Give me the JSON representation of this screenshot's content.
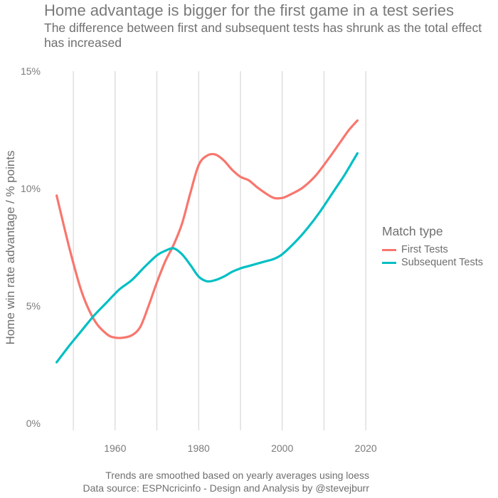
{
  "title": "Home advantage is bigger for the first game in a test series",
  "subtitle": "The difference between first and subsequent tests has shrunk as the total effect has increased",
  "caption_lines": [
    "Trends are smoothed based on yearly averages using loess",
    "Data source: ESPNcricinfo - Design and Analysis by @stevejburr"
  ],
  "chart_data": {
    "type": "line",
    "title": "Home advantage is bigger for the first game in a test series",
    "subtitle": "The difference between first and subsequent tests has shrunk as the total effect has increased",
    "xlabel": "",
    "ylabel": "Home win rate advantage / % points",
    "xlim": [
      1943,
      2021
    ],
    "ylim": [
      0,
      15
    ],
    "x_ticks": [
      1960,
      1980,
      2000,
      2020
    ],
    "x_gridlines": [
      1950,
      1960,
      1970,
      1980,
      1990,
      2000,
      2010,
      2020
    ],
    "y_ticks": [
      0,
      5,
      10,
      15
    ],
    "y_tick_labels": [
      "0%",
      "5%",
      "10%",
      "15%"
    ],
    "grid": "vertical only",
    "legend_position": "right",
    "legend_title": "Match type",
    "series": [
      {
        "name": "First Tests",
        "color": "#F8766D",
        "x": [
          1946,
          1949,
          1952,
          1955,
          1958,
          1960,
          1962,
          1964,
          1966,
          1968,
          1970,
          1972,
          1974,
          1976,
          1978,
          1980,
          1982,
          1984,
          1986,
          1988,
          1990,
          1992,
          1994,
          1996,
          1998,
          2000,
          2002,
          2005,
          2008,
          2011,
          2014,
          2016,
          2018
        ],
        "y": [
          9.7,
          7.5,
          5.6,
          4.4,
          3.8,
          3.65,
          3.65,
          3.75,
          4.1,
          5.0,
          6.0,
          6.9,
          7.6,
          8.5,
          9.8,
          11.0,
          11.4,
          11.45,
          11.2,
          10.8,
          10.5,
          10.35,
          10.05,
          9.8,
          9.6,
          9.6,
          9.75,
          10.05,
          10.55,
          11.25,
          12.0,
          12.5,
          12.9
        ]
      },
      {
        "name": "Subsequent Tests",
        "color": "#00BFC4",
        "x": [
          1946,
          1949,
          1952,
          1955,
          1958,
          1961,
          1964,
          1967,
          1970,
          1972,
          1974,
          1976,
          1978,
          1980,
          1982,
          1984,
          1986,
          1988,
          1990,
          1992,
          1994,
          1996,
          1998,
          2000,
          2003,
          2006,
          2009,
          2012,
          2015,
          2018
        ],
        "y": [
          2.6,
          3.3,
          3.95,
          4.6,
          5.15,
          5.7,
          6.1,
          6.65,
          7.15,
          7.35,
          7.45,
          7.2,
          6.75,
          6.25,
          6.05,
          6.1,
          6.25,
          6.45,
          6.6,
          6.7,
          6.8,
          6.9,
          7.0,
          7.2,
          7.7,
          8.3,
          9.0,
          9.8,
          10.6,
          11.5
        ]
      }
    ]
  }
}
